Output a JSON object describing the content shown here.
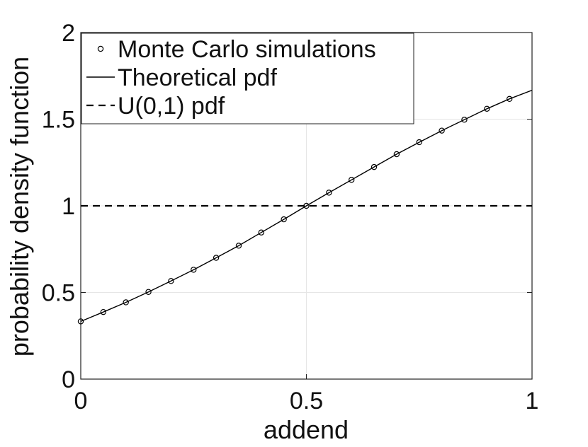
{
  "chart_data": {
    "type": "line",
    "title": "",
    "xlabel": "addend",
    "ylabel": "probability density function",
    "xlim": [
      0,
      1
    ],
    "ylim": [
      0,
      2
    ],
    "x_ticks": [
      "0",
      "0.5",
      "1"
    ],
    "y_ticks": [
      "0",
      "0.5",
      "1",
      "1.5",
      "2"
    ],
    "grid": true,
    "legend_position": "top-left",
    "series": [
      {
        "name": "Monte Carlo simulations",
        "style": "markers",
        "marker": "circle",
        "x": [
          0,
          0.05,
          0.1,
          0.15,
          0.2,
          0.25,
          0.3,
          0.35,
          0.4,
          0.45,
          0.5,
          0.55,
          0.6,
          0.65,
          0.7,
          0.75,
          0.8,
          0.85,
          0.9,
          0.95
        ],
        "values": [
          0.333,
          0.387,
          0.443,
          0.503,
          0.566,
          0.631,
          0.7,
          0.77,
          0.846,
          0.922,
          1.0,
          1.076,
          1.15,
          1.224,
          1.298,
          1.367,
          1.434,
          1.497,
          1.56,
          1.617
        ]
      },
      {
        "name": "Theoretical pdf",
        "style": "solid",
        "x": [
          0,
          0.05,
          0.1,
          0.15,
          0.2,
          0.25,
          0.3,
          0.35,
          0.4,
          0.45,
          0.5,
          0.55,
          0.6,
          0.65,
          0.7,
          0.75,
          0.8,
          0.85,
          0.9,
          0.95,
          1.0
        ],
        "values": [
          0.333,
          0.387,
          0.443,
          0.503,
          0.566,
          0.631,
          0.7,
          0.77,
          0.846,
          0.922,
          1.0,
          1.076,
          1.15,
          1.224,
          1.298,
          1.367,
          1.434,
          1.497,
          1.56,
          1.617,
          1.667
        ]
      },
      {
        "name": "U(0,1) pdf",
        "style": "dashed",
        "x": [
          0,
          1
        ],
        "values": [
          1,
          1
        ]
      }
    ],
    "colors": {
      "line": "#000000",
      "grid": "#e6e6e6",
      "axis": "#222222"
    }
  }
}
